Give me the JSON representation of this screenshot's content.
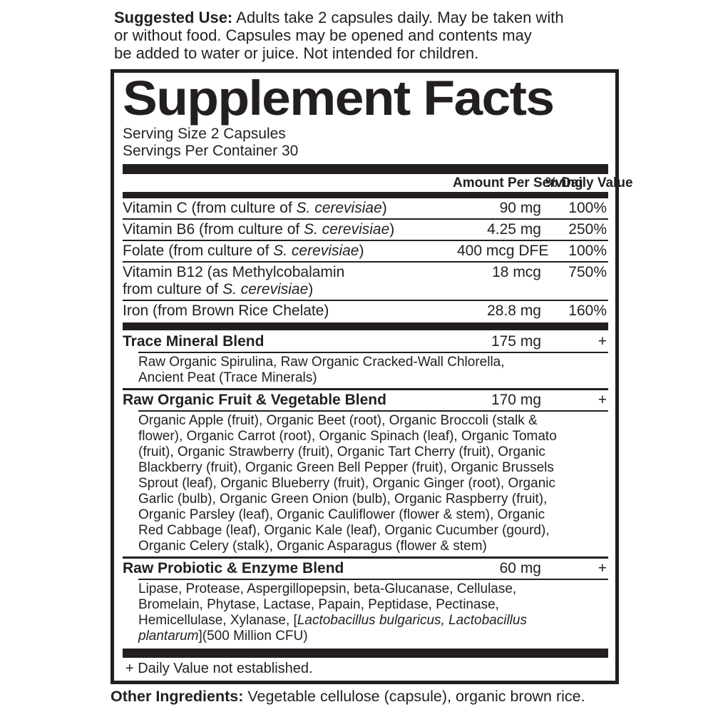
{
  "colors": {
    "ink": "#231f20",
    "background": "#ffffff"
  },
  "suggested_use": {
    "label": "Suggested Use:",
    "text": " Adults take 2 capsules daily. May be taken with\nor without food. Capsules may be opened and contents may\nbe added to water or juice. Not intended for children."
  },
  "panel": {
    "title": "Supplement Facts",
    "serving_size": "Serving Size 2 Capsules",
    "servings_per_container": "Servings Per Container 30",
    "columns": {
      "amount": "Amount Per\nServing",
      "daily_value": "% Daily\nValue"
    },
    "nutrients": [
      {
        "name_parts": [
          {
            "t": "Vitamin C (from culture of "
          },
          {
            "t": "S. cerevisiae",
            "i": true
          },
          {
            "t": ")"
          }
        ],
        "amount": "90 mg",
        "dv": "100%"
      },
      {
        "name_parts": [
          {
            "t": "Vitamin B6 (from culture of "
          },
          {
            "t": "S. cerevisiae",
            "i": true
          },
          {
            "t": ")"
          }
        ],
        "amount": "4.25 mg",
        "dv": "250%"
      },
      {
        "name_parts": [
          {
            "t": "Folate (from culture of "
          },
          {
            "t": "S. cerevisiae",
            "i": true
          },
          {
            "t": ")"
          }
        ],
        "amount": "400 mcg DFE",
        "dv": "100%"
      },
      {
        "name_parts": [
          {
            "t": "Vitamin B12 (as Methylcobalamin\nfrom culture of "
          },
          {
            "t": "S. cerevisiae",
            "i": true
          },
          {
            "t": ")"
          }
        ],
        "amount": "18 mcg",
        "dv": "750%"
      },
      {
        "name_parts": [
          {
            "t": "Iron (from Brown Rice Chelate)"
          }
        ],
        "amount": "28.8 mg",
        "dv": "160%"
      }
    ],
    "blends": [
      {
        "name": "Trace Mineral Blend",
        "amount": "175 mg",
        "dv": "+",
        "ingredients_parts": [
          {
            "t": "Raw Organic Spirulina, Raw Organic Cracked-Wall Chlorella,\nAncient Peat (Trace Minerals)"
          }
        ]
      },
      {
        "name": "Raw Organic Fruit & Vegetable Blend",
        "amount": "170 mg",
        "dv": "+",
        "ingredients_parts": [
          {
            "t": "Organic Apple (fruit), Organic Beet (root), Organic Broccoli (stalk &\nflower), Organic Carrot (root), Organic Spinach (leaf), Organic Tomato\n(fruit), Organic Strawberry (fruit), Organic Tart Cherry (fruit), Organic\nBlackberry (fruit), Organic Green Bell Pepper (fruit), Organic Brussels\nSprout (leaf), Organic Blueberry (fruit), Organic Ginger (root), Organic\nGarlic (bulb), Organic Green Onion (bulb), Organic Raspberry (fruit),\nOrganic Parsley (leaf), Organic Cauliflower (flower & stem), Organic\nRed Cabbage (leaf), Organic Kale (leaf), Organic Cucumber (gourd),\nOrganic Celery (stalk), Organic Asparagus (flower & stem)"
          }
        ]
      },
      {
        "name": "Raw Probiotic & Enzyme Blend",
        "amount": "60 mg",
        "dv": "+",
        "ingredients_parts": [
          {
            "t": "Lipase, Protease, Aspergillopepsin, beta-Glucanase, Cellulase,\nBromelain, Phytase, Lactase, Papain, Peptidase, Pectinase,\nHemicellulase, Xylanase, ["
          },
          {
            "t": "Lactobacillus bulgaricus, Lactobacillus\nplantarum",
            "i": true
          },
          {
            "t": "](500 Million CFU)"
          }
        ]
      }
    ],
    "footnote": "+ Daily Value not established."
  },
  "other_ingredients": {
    "label": "Other Ingredients:",
    "text": " Vegetable cellulose (capsule), organic brown rice."
  }
}
